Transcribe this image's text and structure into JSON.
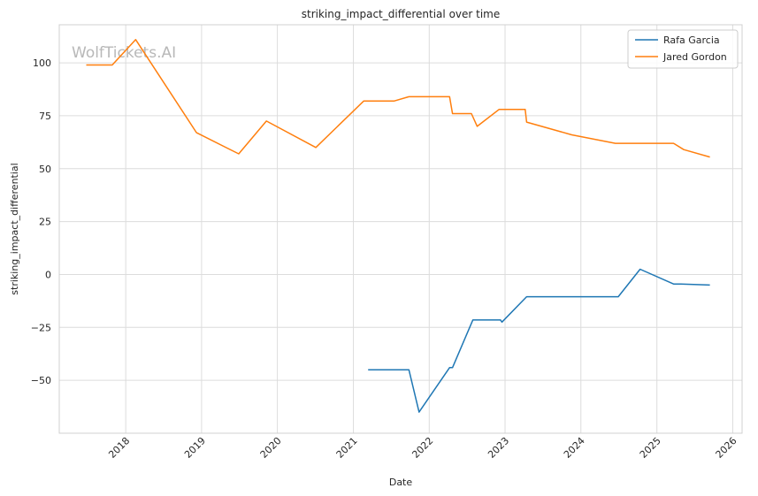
{
  "chart_data": {
    "type": "line",
    "title": "striking_impact_differential over time",
    "xlabel": "Date",
    "ylabel": "striking_impact_differential",
    "watermark": "WolfTickets.AI",
    "grid": true,
    "legend_position": "top-right",
    "xlim": [
      "2017-02-15",
      "2026-02-15"
    ],
    "ylim": [
      -75,
      118
    ],
    "x_ticks": [
      "2018-01-01",
      "2019-01-01",
      "2020-01-01",
      "2021-01-01",
      "2022-01-01",
      "2023-01-01",
      "2024-01-01",
      "2025-01-01",
      "2026-01-01"
    ],
    "x_tick_labels": [
      "2018",
      "2019",
      "2020",
      "2021",
      "2022",
      "2023",
      "2024",
      "2025",
      "2026"
    ],
    "y_ticks": [
      -50,
      -25,
      0,
      25,
      50,
      75,
      100
    ],
    "y_tick_labels": [
      "−50",
      "−25",
      "0",
      "25",
      "50",
      "75",
      "100"
    ],
    "series": [
      {
        "name": "Rafa Garcia",
        "color": "#1f77b4",
        "points": [
          [
            "2021-03-13",
            -45
          ],
          [
            "2021-09-25",
            -45
          ],
          [
            "2021-11-13",
            -65
          ],
          [
            "2022-04-09",
            -44
          ],
          [
            "2022-04-23",
            -44
          ],
          [
            "2022-07-30",
            -21.5
          ],
          [
            "2022-12-10",
            -21.5
          ],
          [
            "2022-12-17",
            -22.5
          ],
          [
            "2023-04-15",
            -10.5
          ],
          [
            "2024-06-29",
            -10.5
          ],
          [
            "2024-10-12",
            2.5
          ],
          [
            "2025-03-22",
            -4.5
          ],
          [
            "2025-04-26",
            -4.5
          ],
          [
            "2025-09-13",
            -5
          ]
        ]
      },
      {
        "name": "Jared Gordon",
        "color": "#ff7f0e",
        "points": [
          [
            "2017-06-25",
            99
          ],
          [
            "2017-10-28",
            99
          ],
          [
            "2018-02-18",
            111
          ],
          [
            "2018-12-08",
            67
          ],
          [
            "2019-06-29",
            57
          ],
          [
            "2019-11-09",
            72.5
          ],
          [
            "2020-07-04",
            60
          ],
          [
            "2021-02-20",
            82
          ],
          [
            "2021-07-17",
            82
          ],
          [
            "2021-09-25",
            84
          ],
          [
            "2022-04-09",
            84
          ],
          [
            "2022-04-23",
            76
          ],
          [
            "2022-07-23",
            76
          ],
          [
            "2022-08-20",
            70
          ],
          [
            "2022-12-03",
            78
          ],
          [
            "2023-04-08",
            78
          ],
          [
            "2023-04-15",
            72
          ],
          [
            "2023-11-18",
            66
          ],
          [
            "2024-06-15",
            62
          ],
          [
            "2025-03-22",
            62
          ],
          [
            "2025-05-10",
            59
          ],
          [
            "2025-09-13",
            55.5
          ]
        ]
      }
    ]
  }
}
